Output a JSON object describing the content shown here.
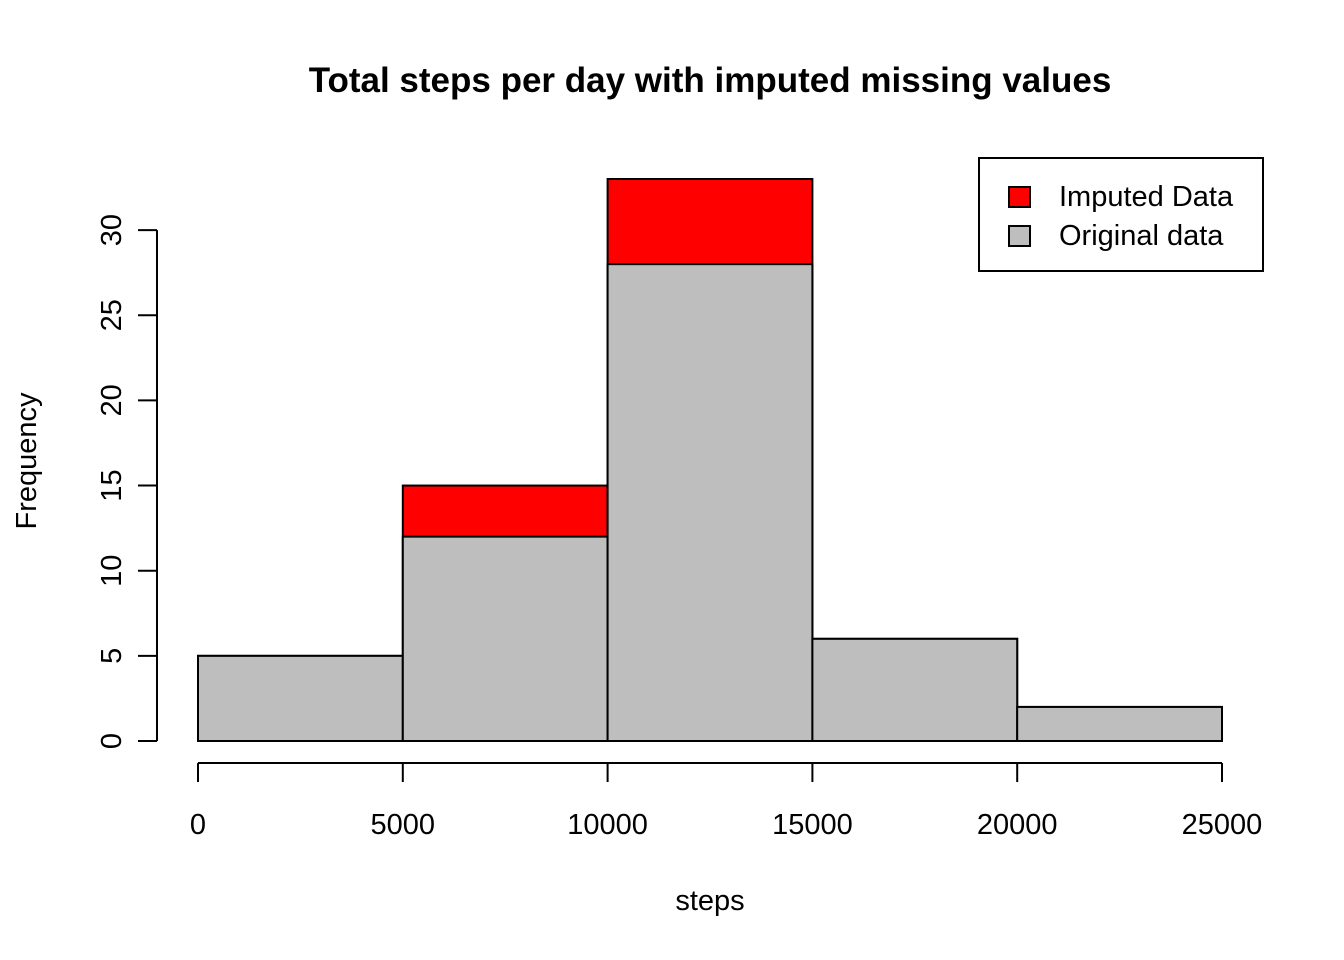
{
  "chart_data": {
    "type": "bar",
    "title": "Total steps per day with imputed missing values",
    "xlabel": "steps",
    "ylabel": "Frequency",
    "bins": [
      [
        0,
        5000
      ],
      [
        5000,
        10000
      ],
      [
        10000,
        15000
      ],
      [
        15000,
        20000
      ],
      [
        20000,
        25000
      ]
    ],
    "series": [
      {
        "name": "Imputed Data",
        "values": [
          5,
          15,
          33,
          6,
          2
        ],
        "color": "#ff0000"
      },
      {
        "name": "Original data",
        "values": [
          5,
          12,
          28,
          6,
          2
        ],
        "color": "#bebebe"
      }
    ],
    "xlim": [
      0,
      25000
    ],
    "ylim": [
      0,
      33
    ],
    "x_ticks": [
      "0",
      "5000",
      "10000",
      "15000",
      "20000",
      "25000"
    ],
    "y_ticks": [
      "0",
      "5",
      "10",
      "15",
      "20",
      "25",
      "30"
    ],
    "grid": false,
    "legend_position": "top-right"
  }
}
